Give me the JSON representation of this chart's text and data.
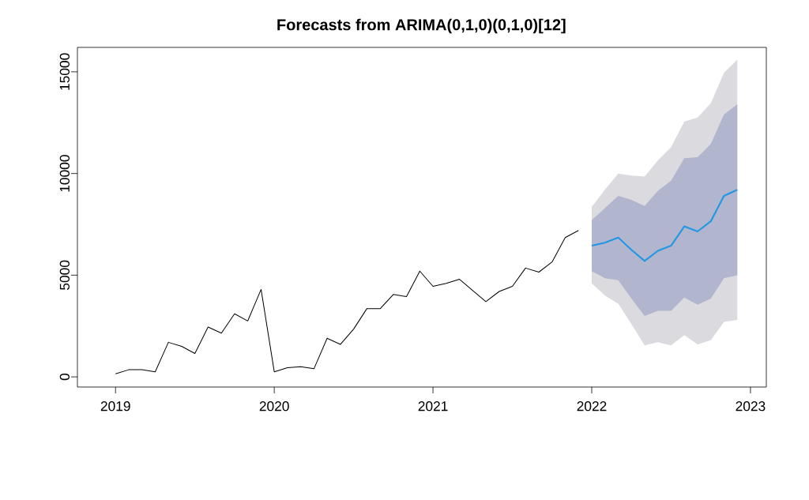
{
  "chart_data": {
    "type": "line",
    "title": "Forecasts from ARIMA(0,1,0)(0,1,0)[12]",
    "xlim": [
      2018.76,
      2023.1
    ],
    "ylim": [
      -500,
      16200
    ],
    "xticks": [
      2019,
      2020,
      2021,
      2022,
      2023
    ],
    "yticks": [
      0,
      5000,
      10000,
      15000
    ],
    "grid": false,
    "series": [
      {
        "color": "#000000",
        "x": [
          2019,
          2019.083,
          2019.167,
          2019.25,
          2019.333,
          2019.417,
          2019.5,
          2019.583,
          2019.667,
          2019.75,
          2019.833,
          2019.917,
          2020,
          2020.083,
          2020.167,
          2020.25,
          2020.333,
          2020.417,
          2020.5,
          2020.583,
          2020.667,
          2020.75,
          2020.833,
          2020.917,
          2021,
          2021.083,
          2021.167,
          2021.25,
          2021.333,
          2021.417,
          2021.5,
          2021.583,
          2021.667,
          2021.75,
          2021.833,
          2021.917
        ],
        "values": [
          150,
          350,
          350,
          250,
          1700,
          1500,
          1150,
          2450,
          2150,
          3100,
          2750,
          4300,
          250,
          450,
          500,
          400,
          1900,
          1600,
          2350,
          3350,
          3350,
          4050,
          3950,
          5200,
          4450,
          4600,
          4800,
          4250,
          3700,
          4200,
          4450,
          5350,
          5150,
          5650,
          6850,
          7200
        ]
      },
      {
        "color": "#dbdbdf",
        "x": [
          2022,
          2022.083,
          2022.167,
          2022.25,
          2022.333,
          2022.417,
          2022.5,
          2022.583,
          2022.667,
          2022.75,
          2022.833,
          2022.917
        ],
        "values": [
          null,
          null,
          null,
          null,
          null,
          null,
          null,
          null,
          null,
          null,
          null,
          null
        ],
        "lower": [
          4600,
          4000,
          3600,
          2600,
          1550,
          1700,
          1550,
          2050,
          1600,
          1800,
          2700,
          2800
        ],
        "upper": [
          8350,
          9200,
          10000,
          9900,
          9850,
          10650,
          11300,
          12550,
          12750,
          13450,
          14950,
          15600
        ]
      },
      {
        "color": "#b1b5ce",
        "x": [
          2022,
          2022.083,
          2022.167,
          2022.25,
          2022.333,
          2022.417,
          2022.5,
          2022.583,
          2022.667,
          2022.75,
          2022.833,
          2022.917
        ],
        "values": [
          null,
          null,
          null,
          null,
          null,
          null,
          null,
          null,
          null,
          null,
          null,
          null
        ],
        "lower": [
          5200,
          4850,
          4750,
          3850,
          3000,
          3250,
          3250,
          3900,
          3550,
          3850,
          4850,
          5000
        ],
        "upper": [
          7700,
          8300,
          8900,
          8700,
          8400,
          9150,
          9650,
          10750,
          10800,
          11450,
          12900,
          13400
        ]
      },
      {
        "color": "#2297e6",
        "x": [
          2022,
          2022.083,
          2022.167,
          2022.25,
          2022.333,
          2022.417,
          2022.5,
          2022.583,
          2022.667,
          2022.75,
          2022.833,
          2022.917
        ],
        "values": [
          6450,
          6600,
          6850,
          6250,
          5700,
          6200,
          6450,
          7400,
          7150,
          7650,
          8900,
          9200
        ]
      }
    ]
  }
}
